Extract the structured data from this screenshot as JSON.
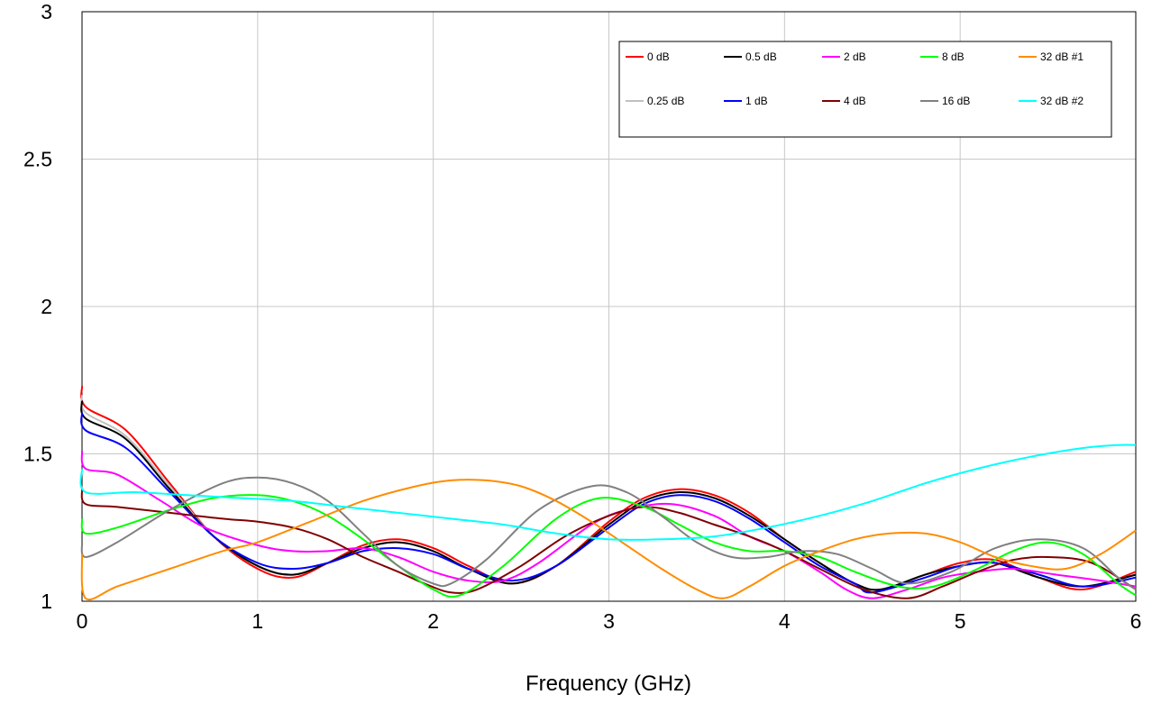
{
  "chart_data": {
    "type": "line",
    "title": "",
    "xlabel": "Frequency (GHz)",
    "ylabel": "",
    "xlim": [
      0,
      6
    ],
    "ylim": [
      1,
      3
    ],
    "xticks": [
      "0",
      "1",
      "2",
      "3",
      "4",
      "5",
      "6"
    ],
    "yticks": [
      "1",
      "1.5",
      "2",
      "2.5",
      "3"
    ],
    "grid": true,
    "legend_position": "top-right",
    "series": [
      {
        "name": "0 dB",
        "color": "#ff0000",
        "x": [
          0,
          0.02,
          0.25,
          0.5,
          0.75,
          1.0,
          1.2,
          1.4,
          1.6,
          1.8,
          2.0,
          2.2,
          2.45,
          2.7,
          3.0,
          3.2,
          3.4,
          3.6,
          3.8,
          4.0,
          4.2,
          4.4,
          4.55,
          4.8,
          5.0,
          5.2,
          5.45,
          5.7,
          6.0
        ],
        "y": [
          1.73,
          1.66,
          1.58,
          1.4,
          1.22,
          1.11,
          1.08,
          1.13,
          1.19,
          1.21,
          1.18,
          1.12,
          1.06,
          1.12,
          1.27,
          1.35,
          1.38,
          1.36,
          1.3,
          1.21,
          1.13,
          1.06,
          1.04,
          1.09,
          1.13,
          1.14,
          1.08,
          1.04,
          1.1
        ]
      },
      {
        "name": "0.25 dB",
        "color": "#c0c0c0",
        "x": [
          0,
          0.02,
          0.25,
          0.5,
          0.75,
          1.0,
          1.2,
          1.4,
          1.6,
          1.8,
          2.0,
          2.2,
          2.45,
          2.7,
          3.0,
          3.2,
          3.4,
          3.6,
          3.8,
          4.0,
          4.2,
          4.4,
          4.55,
          4.8,
          5.0,
          5.2,
          5.45,
          5.7,
          6.0
        ],
        "y": [
          1.7,
          1.64,
          1.56,
          1.39,
          1.22,
          1.12,
          1.09,
          1.13,
          1.18,
          1.2,
          1.17,
          1.11,
          1.06,
          1.12,
          1.26,
          1.34,
          1.37,
          1.35,
          1.29,
          1.21,
          1.13,
          1.06,
          1.04,
          1.09,
          1.12,
          1.13,
          1.08,
          1.05,
          1.09
        ]
      },
      {
        "name": "0.5 dB",
        "color": "#000000",
        "x": [
          0,
          0.02,
          0.25,
          0.5,
          0.75,
          1.0,
          1.2,
          1.4,
          1.6,
          1.8,
          2.0,
          2.2,
          2.45,
          2.7,
          3.0,
          3.2,
          3.4,
          3.6,
          3.8,
          4.0,
          4.2,
          4.4,
          4.55,
          4.8,
          5.0,
          5.2,
          5.45,
          5.7,
          6.0
        ],
        "y": [
          1.68,
          1.62,
          1.55,
          1.38,
          1.22,
          1.12,
          1.09,
          1.13,
          1.18,
          1.2,
          1.17,
          1.11,
          1.06,
          1.12,
          1.26,
          1.34,
          1.37,
          1.35,
          1.29,
          1.21,
          1.13,
          1.06,
          1.04,
          1.09,
          1.12,
          1.13,
          1.08,
          1.05,
          1.09
        ]
      },
      {
        "name": "1 dB",
        "color": "#0000ff",
        "x": [
          0,
          0.02,
          0.25,
          0.5,
          0.75,
          1.0,
          1.2,
          1.4,
          1.6,
          1.8,
          2.0,
          2.2,
          2.45,
          2.7,
          3.0,
          3.2,
          3.4,
          3.6,
          3.8,
          4.0,
          4.2,
          4.4,
          4.5,
          4.8,
          5.0,
          5.2,
          5.45,
          5.7,
          6.0
        ],
        "y": [
          1.64,
          1.58,
          1.52,
          1.37,
          1.22,
          1.13,
          1.11,
          1.13,
          1.17,
          1.18,
          1.16,
          1.11,
          1.07,
          1.12,
          1.25,
          1.33,
          1.36,
          1.34,
          1.28,
          1.2,
          1.12,
          1.06,
          1.03,
          1.08,
          1.12,
          1.13,
          1.09,
          1.05,
          1.08
        ]
      },
      {
        "name": "2 dB",
        "color": "#ff00ff",
        "x": [
          0,
          0.02,
          0.2,
          0.45,
          0.7,
          1.0,
          1.2,
          1.4,
          1.6,
          1.8,
          2.0,
          2.2,
          2.4,
          2.6,
          2.9,
          3.1,
          3.35,
          3.6,
          3.8,
          4.0,
          4.2,
          4.35,
          4.5,
          4.7,
          4.9,
          5.1,
          5.3,
          5.55,
          5.8,
          6.0
        ],
        "y": [
          1.51,
          1.45,
          1.43,
          1.34,
          1.25,
          1.19,
          1.17,
          1.17,
          1.18,
          1.15,
          1.1,
          1.07,
          1.07,
          1.13,
          1.26,
          1.31,
          1.33,
          1.29,
          1.22,
          1.17,
          1.1,
          1.04,
          1.01,
          1.04,
          1.08,
          1.1,
          1.11,
          1.09,
          1.07,
          1.05
        ]
      },
      {
        "name": "4 dB",
        "color": "#800000",
        "x": [
          0,
          0.02,
          0.2,
          0.5,
          0.8,
          1.0,
          1.2,
          1.4,
          1.6,
          1.8,
          1.95,
          2.1,
          2.25,
          2.5,
          2.75,
          3.0,
          3.2,
          3.4,
          3.6,
          3.8,
          4.0,
          4.2,
          4.45,
          4.7,
          4.9,
          5.1,
          5.3,
          5.5,
          5.75,
          6.0
        ],
        "y": [
          1.38,
          1.33,
          1.32,
          1.3,
          1.28,
          1.27,
          1.25,
          1.21,
          1.15,
          1.1,
          1.06,
          1.03,
          1.04,
          1.12,
          1.22,
          1.29,
          1.32,
          1.3,
          1.26,
          1.22,
          1.17,
          1.11,
          1.04,
          1.01,
          1.05,
          1.1,
          1.14,
          1.15,
          1.13,
          1.04
        ]
      },
      {
        "name": "8 dB",
        "color": "#00ff00",
        "x": [
          0,
          0.02,
          0.2,
          0.5,
          0.75,
          1.0,
          1.2,
          1.4,
          1.6,
          1.8,
          2.0,
          2.15,
          2.4,
          2.7,
          2.95,
          3.2,
          3.4,
          3.6,
          3.8,
          4.0,
          4.2,
          4.4,
          4.65,
          4.85,
          5.1,
          5.3,
          5.5,
          5.7,
          5.9,
          6.0
        ],
        "y": [
          1.28,
          1.23,
          1.25,
          1.31,
          1.35,
          1.36,
          1.34,
          1.29,
          1.21,
          1.12,
          1.04,
          1.02,
          1.12,
          1.28,
          1.35,
          1.32,
          1.26,
          1.2,
          1.17,
          1.17,
          1.15,
          1.1,
          1.05,
          1.05,
          1.11,
          1.17,
          1.2,
          1.16,
          1.06,
          1.02
        ]
      },
      {
        "name": "16 dB",
        "color": "#808080",
        "x": [
          0,
          0.02,
          0.2,
          0.5,
          0.8,
          1.0,
          1.2,
          1.4,
          1.6,
          1.8,
          2.0,
          2.1,
          2.3,
          2.6,
          2.9,
          3.1,
          3.3,
          3.5,
          3.7,
          3.9,
          4.1,
          4.3,
          4.5,
          4.7,
          4.95,
          5.2,
          5.45,
          5.7,
          5.9,
          6.0
        ],
        "y": [
          1.2,
          1.15,
          1.2,
          1.31,
          1.4,
          1.42,
          1.4,
          1.34,
          1.23,
          1.12,
          1.06,
          1.06,
          1.14,
          1.31,
          1.39,
          1.37,
          1.29,
          1.2,
          1.15,
          1.15,
          1.17,
          1.16,
          1.11,
          1.06,
          1.1,
          1.18,
          1.21,
          1.18,
          1.08,
          1.04
        ]
      },
      {
        "name": "32 dB #1",
        "color": "#ff8c00",
        "x": [
          0,
          0.02,
          0.2,
          0.5,
          0.8,
          1.0,
          1.3,
          1.6,
          1.9,
          2.1,
          2.3,
          2.5,
          2.7,
          2.9,
          3.1,
          3.3,
          3.5,
          3.65,
          3.8,
          4.0,
          4.2,
          4.4,
          4.6,
          4.8,
          5.0,
          5.2,
          5.4,
          5.6,
          5.8,
          6.0
        ],
        "y": [
          1.16,
          1.01,
          1.05,
          1.11,
          1.17,
          1.2,
          1.27,
          1.34,
          1.39,
          1.41,
          1.41,
          1.39,
          1.34,
          1.27,
          1.19,
          1.11,
          1.04,
          1.01,
          1.05,
          1.12,
          1.17,
          1.21,
          1.23,
          1.23,
          1.2,
          1.15,
          1.12,
          1.11,
          1.16,
          1.24
        ]
      },
      {
        "name": "32 dB #2",
        "color": "#00ffff",
        "x": [
          0,
          0.02,
          0.3,
          0.6,
          0.9,
          1.2,
          1.5,
          1.8,
          2.1,
          2.4,
          2.7,
          3.0,
          3.3,
          3.6,
          3.9,
          4.2,
          4.5,
          4.8,
          5.1,
          5.4,
          5.7,
          5.9,
          6.0
        ],
        "y": [
          1.45,
          1.37,
          1.37,
          1.36,
          1.35,
          1.34,
          1.32,
          1.3,
          1.28,
          1.26,
          1.23,
          1.21,
          1.21,
          1.22,
          1.25,
          1.29,
          1.34,
          1.4,
          1.45,
          1.49,
          1.52,
          1.53,
          1.53
        ]
      }
    ]
  }
}
